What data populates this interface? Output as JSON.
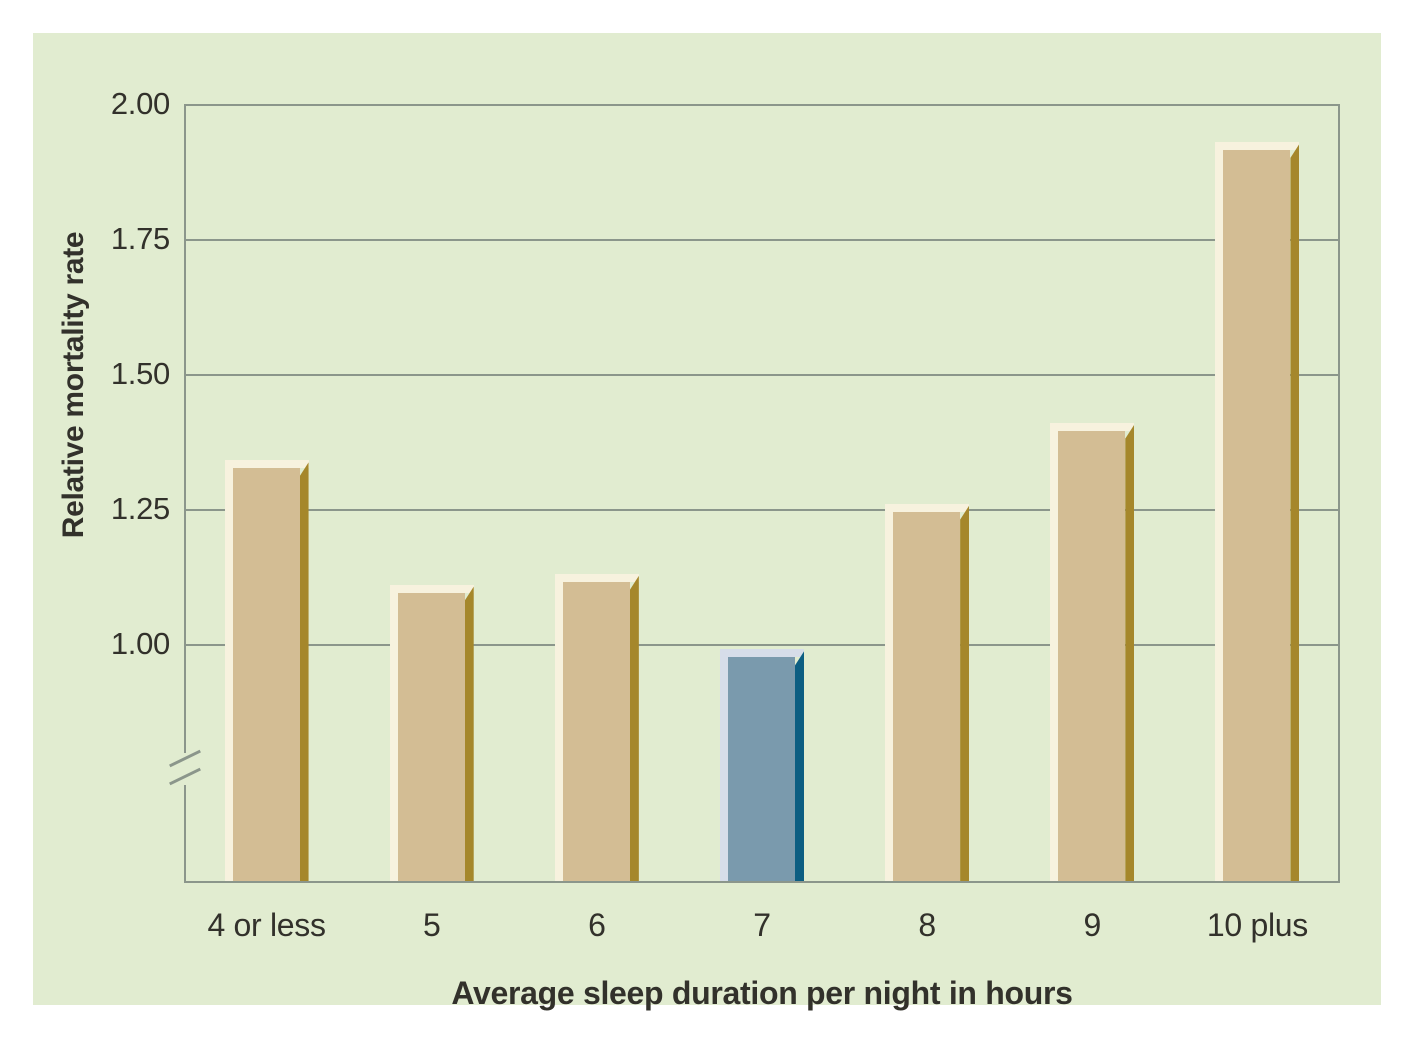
{
  "figure": {
    "background_color": "#ffffff",
    "panel_color": "#e1ecd0",
    "grid_color": "#8b968b",
    "text_color": "#32312b",
    "bar_palette": {
      "body": "#d3bd94",
      "highlight_edge": "#f7f2de",
      "shadow_edge": "#a5872b"
    },
    "reference_bar_palette": {
      "body": "#7a9aad",
      "highlight_edge": "#d6dde9",
      "shadow_edge": "#0c5e82"
    }
  },
  "chart_data": {
    "type": "bar",
    "title": "",
    "categories": [
      "4 or less",
      "5",
      "6",
      "7",
      "8",
      "9",
      "10 plus"
    ],
    "values": [
      1.34,
      1.11,
      1.13,
      0.99,
      1.26,
      1.41,
      1.93
    ],
    "highlighted_category": "7",
    "highlight_index": 3,
    "xlabel": "Average sleep duration per night in hours",
    "ylabel": "Relative mortality rate",
    "y_tick_labels": [
      "2.00",
      "1.75",
      "1.50",
      "1.25",
      "1.00"
    ],
    "y_axis": {
      "max": 2.0,
      "min_tick": 1.0,
      "tick_step": 0.25,
      "axis_break_below_min": true
    },
    "grid": "horizontal gridlines on",
    "legend": "none"
  }
}
